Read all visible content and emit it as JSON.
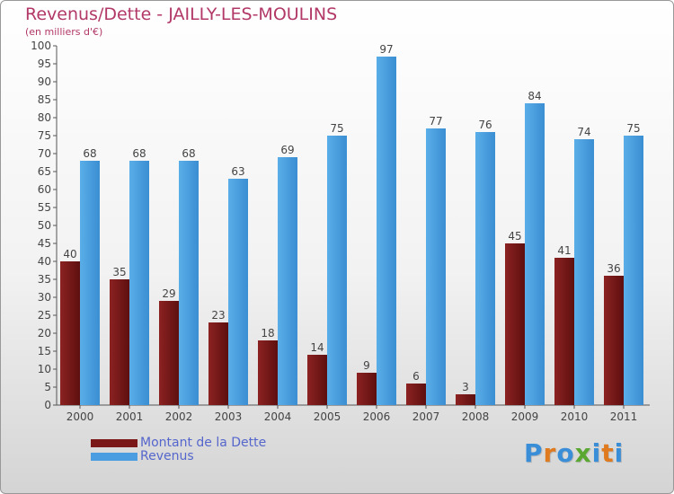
{
  "title": "Revenus/Dette - JAILLY-LES-MOULINS",
  "subtitle": "(en milliers d'€)",
  "colors": {
    "dette": "#7a1818",
    "revenus": "#4a9de0",
    "axis": "#555555",
    "grid": "#dddddd"
  },
  "legend": {
    "dette": "Montant de la Dette",
    "revenus": "Revenus"
  },
  "logo": {
    "text": "Proxiti",
    "letters": [
      "P",
      "r",
      "o",
      "x",
      "i",
      "t",
      "i"
    ],
    "colors": [
      "#3a8ed8",
      "#e07a1e",
      "#3a8ed8",
      "#5aa832",
      "#3a8ed8",
      "#e07a1e",
      "#3a8ed8"
    ]
  },
  "chart_data": {
    "type": "bar",
    "title": "Revenus/Dette - JAILLY-LES-MOULINS",
    "ylabel": "(en milliers d'€)",
    "xlabel": "",
    "categories": [
      "2000",
      "2001",
      "2002",
      "2003",
      "2004",
      "2005",
      "2006",
      "2007",
      "2008",
      "2009",
      "2010",
      "2011"
    ],
    "series": [
      {
        "name": "Montant de la Dette",
        "values": [
          40,
          35,
          29,
          23,
          18,
          14,
          9,
          6,
          3,
          45,
          41,
          36
        ]
      },
      {
        "name": "Revenus",
        "values": [
          68,
          68,
          68,
          63,
          69,
          75,
          97,
          77,
          76,
          84,
          74,
          75
        ]
      }
    ],
    "ylim": [
      0,
      100
    ],
    "yticks": [
      0,
      5,
      10,
      15,
      20,
      25,
      30,
      35,
      40,
      45,
      50,
      55,
      60,
      65,
      70,
      75,
      80,
      85,
      90,
      95,
      100
    ],
    "grid": false,
    "legend_position": "bottom-left"
  }
}
